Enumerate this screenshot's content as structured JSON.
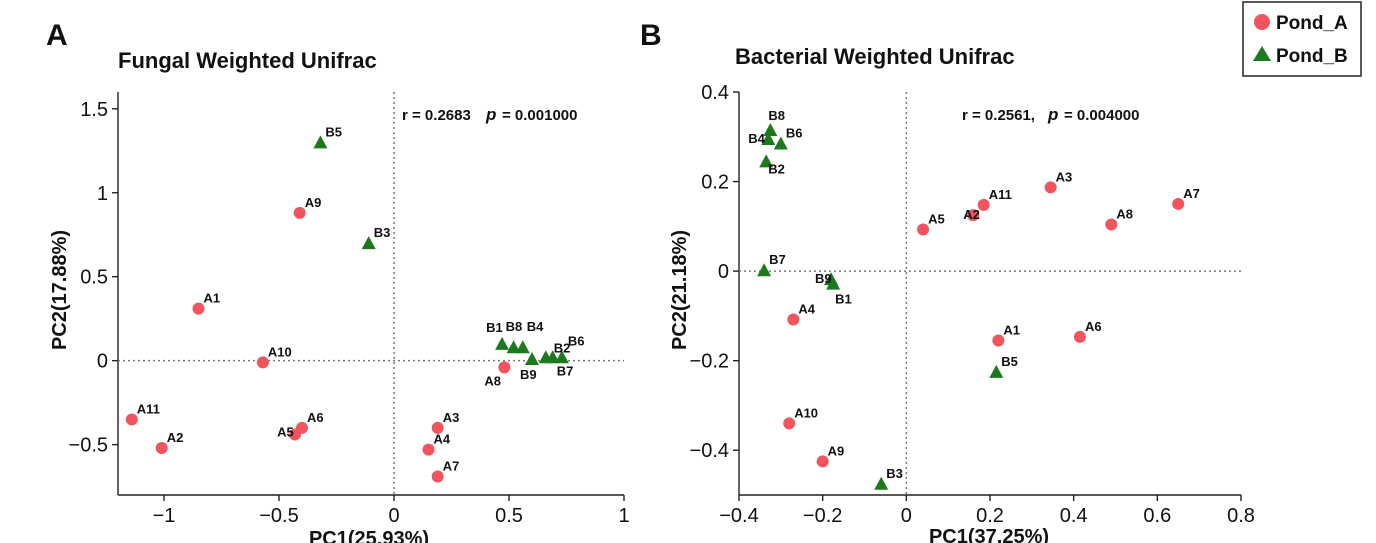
{
  "legend": {
    "entries": [
      {
        "label": "Pond_A",
        "marker": "circle",
        "color": "#f0545c"
      },
      {
        "label": "Pond_B",
        "marker": "triangle",
        "color": "#1c7a1c"
      }
    ]
  },
  "chart_data": [
    {
      "type": "scatter",
      "panel_label": "A",
      "title": "Fungal Weighted Unifrac",
      "xlabel": "PC1(25.93%)",
      "ylabel": "PC2(17.88%)",
      "xlim": [
        -1.2,
        1.0
      ],
      "ylim": [
        -0.8,
        1.6
      ],
      "xticks": [
        -1,
        -0.5,
        0,
        0.5,
        1
      ],
      "xtick_labels": [
        "−1",
        "−0.5",
        "0",
        "0.5",
        "1"
      ],
      "yticks": [
        -0.5,
        0,
        0.5,
        1,
        1.5
      ],
      "ytick_labels": [
        "−0.5",
        "0",
        "0.5",
        "1",
        "1.5"
      ],
      "annotation": {
        "r_text": "r = 0.2683",
        "p_symbol": "p",
        "p_value": "= 0.001000"
      },
      "series": [
        {
          "name": "Pond_A",
          "points": [
            {
              "label": "A1",
              "x": -0.85,
              "y": 0.31
            },
            {
              "label": "A2",
              "x": -1.01,
              "y": -0.52
            },
            {
              "label": "A3",
              "x": 0.19,
              "y": -0.4
            },
            {
              "label": "A4",
              "x": 0.15,
              "y": -0.53
            },
            {
              "label": "A5",
              "x": -0.43,
              "y": -0.44
            },
            {
              "label": "A6",
              "x": -0.4,
              "y": -0.4
            },
            {
              "label": "A7",
              "x": 0.19,
              "y": -0.69
            },
            {
              "label": "A8",
              "x": 0.48,
              "y": -0.04
            },
            {
              "label": "A9",
              "x": -0.41,
              "y": 0.88
            },
            {
              "label": "A10",
              "x": -0.57,
              "y": -0.01
            },
            {
              "label": "A11",
              "x": -1.14,
              "y": -0.35
            }
          ]
        },
        {
          "name": "Pond_B",
          "points": [
            {
              "label": "B1",
              "x": 0.47,
              "y": 0.1
            },
            {
              "label": "B2",
              "x": 0.66,
              "y": 0.02
            },
            {
              "label": "B3",
              "x": -0.11,
              "y": 0.7
            },
            {
              "label": "B4",
              "x": 0.56,
              "y": 0.08
            },
            {
              "label": "B5",
              "x": -0.32,
              "y": 1.3
            },
            {
              "label": "B6",
              "x": 0.73,
              "y": 0.02
            },
            {
              "label": "B7",
              "x": 0.69,
              "y": 0.02
            },
            {
              "label": "B8",
              "x": 0.52,
              "y": 0.08
            },
            {
              "label": "B9",
              "x": 0.6,
              "y": 0.01
            }
          ]
        }
      ]
    },
    {
      "type": "scatter",
      "panel_label": "B",
      "title": "Bacterial Weighted Unifrac",
      "xlabel": "PC1(37.25%)",
      "ylabel": "PC2(21.18%)",
      "xlim": [
        -0.4,
        0.8
      ],
      "ylim": [
        -0.5,
        0.4
      ],
      "xticks": [
        -0.4,
        -0.2,
        0,
        0.2,
        0.4,
        0.6,
        0.8
      ],
      "xtick_labels": [
        "−0.4",
        "−0.2",
        "0",
        "0.2",
        "0.4",
        "0.6",
        "0.8"
      ],
      "yticks": [
        -0.4,
        -0.2,
        0,
        0.2,
        0.4
      ],
      "ytick_labels": [
        "−0.4",
        "−0.2",
        "0",
        "0.2",
        "0.4"
      ],
      "annotation": {
        "r_text": "r = 0.2561,",
        "p_symbol": "p",
        "p_value": "= 0.004000"
      },
      "series": [
        {
          "name": "Pond_A",
          "points": [
            {
              "label": "A1",
              "x": 0.22,
              "y": -0.155
            },
            {
              "label": "A2",
              "x": 0.16,
              "y": 0.125
            },
            {
              "label": "A3",
              "x": 0.345,
              "y": 0.187
            },
            {
              "label": "A4",
              "x": -0.27,
              "y": -0.108
            },
            {
              "label": "A5",
              "x": 0.04,
              "y": 0.093
            },
            {
              "label": "A6",
              "x": 0.415,
              "y": -0.147
            },
            {
              "label": "A7",
              "x": 0.65,
              "y": 0.15
            },
            {
              "label": "A8",
              "x": 0.49,
              "y": 0.104
            },
            {
              "label": "A9",
              "x": -0.2,
              "y": -0.425
            },
            {
              "label": "A10",
              "x": -0.28,
              "y": -0.34
            },
            {
              "label": "A11",
              "x": 0.185,
              "y": 0.148
            }
          ]
        },
        {
          "name": "Pond_B",
          "points": [
            {
              "label": "B1",
              "x": -0.175,
              "y": -0.028
            },
            {
              "label": "B2",
              "x": -0.335,
              "y": 0.245
            },
            {
              "label": "B3",
              "x": -0.06,
              "y": -0.475
            },
            {
              "label": "B4",
              "x": -0.33,
              "y": 0.295
            },
            {
              "label": "B5",
              "x": 0.215,
              "y": -0.225
            },
            {
              "label": "B6",
              "x": -0.3,
              "y": 0.285
            },
            {
              "label": "B7",
              "x": -0.34,
              "y": 0.002
            },
            {
              "label": "B8",
              "x": -0.325,
              "y": 0.315
            },
            {
              "label": "B9",
              "x": -0.18,
              "y": -0.018
            }
          ]
        }
      ]
    }
  ]
}
